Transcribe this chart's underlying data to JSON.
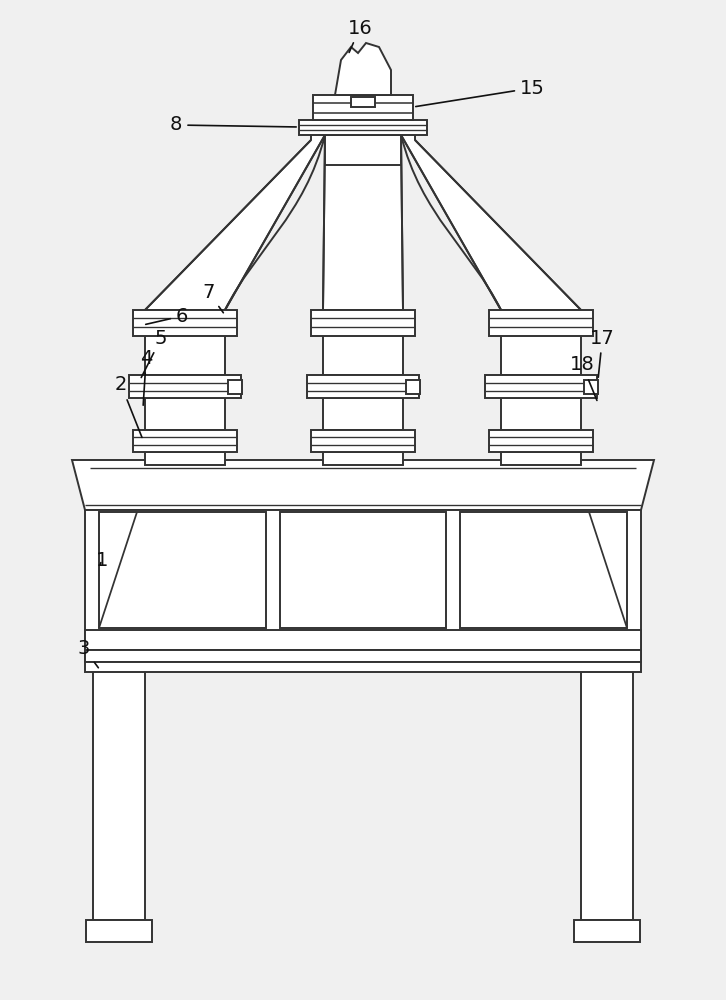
{
  "bg_color": "#f0f0f0",
  "line_color": "#333333",
  "line_width": 1.4,
  "fig_w": 7.26,
  "fig_h": 10.0,
  "dpi": 100
}
